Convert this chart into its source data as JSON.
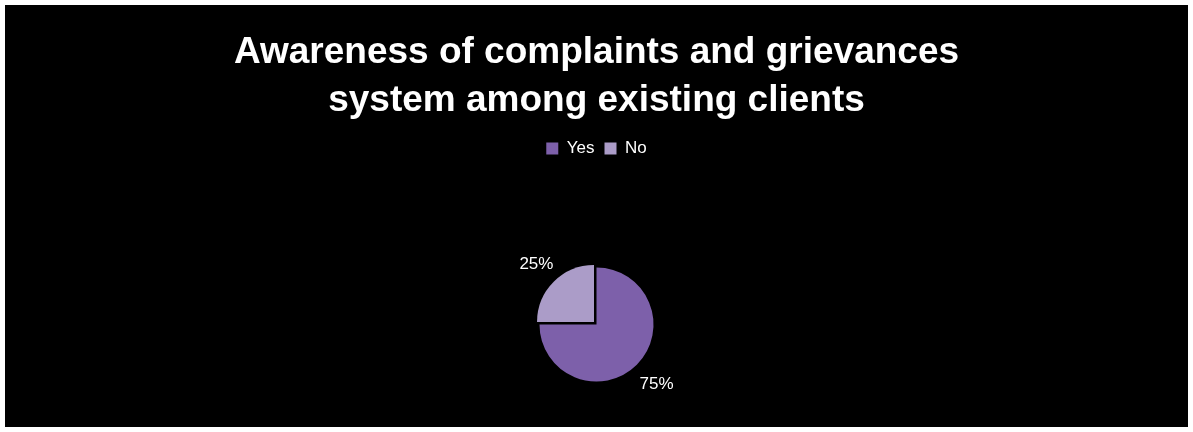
{
  "chart_data": {
    "type": "pie",
    "title": "Awareness of complaints and grievances system among existing clients",
    "categories": [
      "Yes",
      "No"
    ],
    "values": [
      75,
      25
    ],
    "colors": [
      "#7d60aa",
      "#ab9cc8"
    ],
    "value_labels": [
      "75%",
      "25%"
    ],
    "legend": "top"
  }
}
